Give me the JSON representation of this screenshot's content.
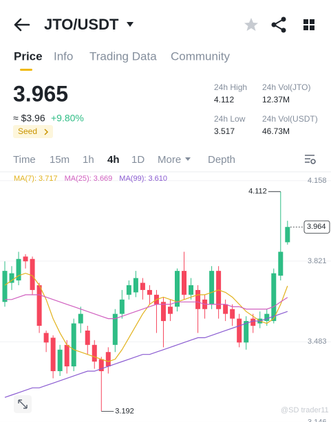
{
  "header": {
    "pair": "JTO/USDT"
  },
  "tabs": [
    "Price",
    "Info",
    "Trading Data",
    "Community"
  ],
  "price": {
    "last": "3.965",
    "fiat": "≈ $3.96",
    "change": "+9.80%",
    "tag": "Seed"
  },
  "stats": [
    {
      "label": "24h High",
      "value": "4.112"
    },
    {
      "label": "24h Vol(JTO)",
      "value": "12.37M"
    },
    {
      "label": "24h Low",
      "value": "3.517"
    },
    {
      "label": "24h Vol(USDT)",
      "value": "46.73M"
    }
  ],
  "intervals": [
    "Time",
    "15m",
    "1h",
    "4h",
    "1D",
    "More",
    "Depth"
  ],
  "watermark": "@SD trader11",
  "chart_data": {
    "type": "candlestick",
    "up_color": "#2ebd85",
    "down_color": "#f6465d",
    "ylim": [
      3.147,
      4.195
    ],
    "yticks": [
      3.146,
      3.483,
      3.821,
      4.158
    ],
    "grid": true,
    "open": [
      3.65,
      3.73,
      3.74,
      3.84,
      3.83,
      3.72,
      3.52,
      3.5,
      3.36,
      3.47,
      3.38,
      3.56,
      3.53,
      3.47,
      3.41,
      3.44,
      3.47,
      3.6,
      3.68,
      3.69,
      3.73,
      3.7,
      3.68,
      3.65,
      3.63,
      3.63,
      3.78,
      3.68,
      3.7,
      3.66,
      3.64,
      3.78,
      3.64,
      3.62,
      3.58,
      3.48,
      3.58,
      3.56,
      3.57,
      3.57,
      3.76,
      3.9
    ],
    "high": [
      3.82,
      3.8,
      3.86,
      3.85,
      3.84,
      3.73,
      3.53,
      3.51,
      3.47,
      3.49,
      3.58,
      3.63,
      3.55,
      3.49,
      3.42,
      3.46,
      3.62,
      3.7,
      3.74,
      3.78,
      3.75,
      3.72,
      3.7,
      3.67,
      3.66,
      3.79,
      3.86,
      3.75,
      3.72,
      3.68,
      3.8,
      3.8,
      3.66,
      3.64,
      3.6,
      3.59,
      3.6,
      3.61,
      3.62,
      3.79,
      4.112,
      3.99
    ],
    "low": [
      3.63,
      3.7,
      3.72,
      3.79,
      3.68,
      3.52,
      3.44,
      3.33,
      3.34,
      3.35,
      3.36,
      3.52,
      3.43,
      3.37,
      3.192,
      3.35,
      3.44,
      3.58,
      3.66,
      3.67,
      3.66,
      3.64,
      3.52,
      3.46,
      3.57,
      3.61,
      3.66,
      3.66,
      3.52,
      3.58,
      3.62,
      3.58,
      3.57,
      3.55,
      3.46,
      3.45,
      3.52,
      3.54,
      3.55,
      3.56,
      3.74,
      3.89
    ],
    "close": [
      3.78,
      3.77,
      3.83,
      3.82,
      3.7,
      3.55,
      3.48,
      3.36,
      3.45,
      3.38,
      3.56,
      3.6,
      3.47,
      3.4,
      3.36,
      3.38,
      3.6,
      3.66,
      3.72,
      3.75,
      3.7,
      3.68,
      3.64,
      3.57,
      3.6,
      3.78,
      3.68,
      3.72,
      3.62,
      3.62,
      3.78,
      3.62,
      3.6,
      3.58,
      3.48,
      3.57,
      3.55,
      3.58,
      3.6,
      3.77,
      3.86,
      3.964
    ],
    "series": [
      {
        "name": "MA(7): 3.717",
        "color": "#e2b21c",
        "values": [
          3.72,
          3.74,
          3.76,
          3.77,
          3.76,
          3.72,
          3.66,
          3.58,
          3.52,
          3.47,
          3.45,
          3.44,
          3.43,
          3.42,
          3.41,
          3.4,
          3.41,
          3.45,
          3.5,
          3.55,
          3.6,
          3.64,
          3.66,
          3.67,
          3.66,
          3.65,
          3.66,
          3.67,
          3.68,
          3.68,
          3.69,
          3.7,
          3.69,
          3.67,
          3.64,
          3.61,
          3.59,
          3.57,
          3.56,
          3.58,
          3.64,
          3.717
        ]
      },
      {
        "name": "MA(25): 3.669",
        "color": "#d05ebf",
        "values": [
          3.66,
          3.66,
          3.67,
          3.68,
          3.68,
          3.68,
          3.67,
          3.66,
          3.65,
          3.64,
          3.63,
          3.62,
          3.61,
          3.6,
          3.59,
          3.58,
          3.58,
          3.59,
          3.6,
          3.61,
          3.62,
          3.63,
          3.64,
          3.64,
          3.64,
          3.65,
          3.65,
          3.65,
          3.65,
          3.64,
          3.64,
          3.64,
          3.64,
          3.63,
          3.63,
          3.62,
          3.62,
          3.62,
          3.62,
          3.63,
          3.65,
          3.669
        ]
      },
      {
        "name": "MA(99): 3.610",
        "color": "#8a5bd1",
        "values": [
          3.25,
          3.26,
          3.27,
          3.28,
          3.29,
          3.29,
          3.3,
          3.31,
          3.32,
          3.33,
          3.34,
          3.35,
          3.36,
          3.36,
          3.37,
          3.38,
          3.39,
          3.4,
          3.41,
          3.42,
          3.43,
          3.43,
          3.44,
          3.45,
          3.46,
          3.47,
          3.48,
          3.49,
          3.5,
          3.5,
          3.51,
          3.52,
          3.53,
          3.54,
          3.55,
          3.56,
          3.57,
          3.57,
          3.58,
          3.59,
          3.6,
          3.61
        ]
      }
    ]
  }
}
